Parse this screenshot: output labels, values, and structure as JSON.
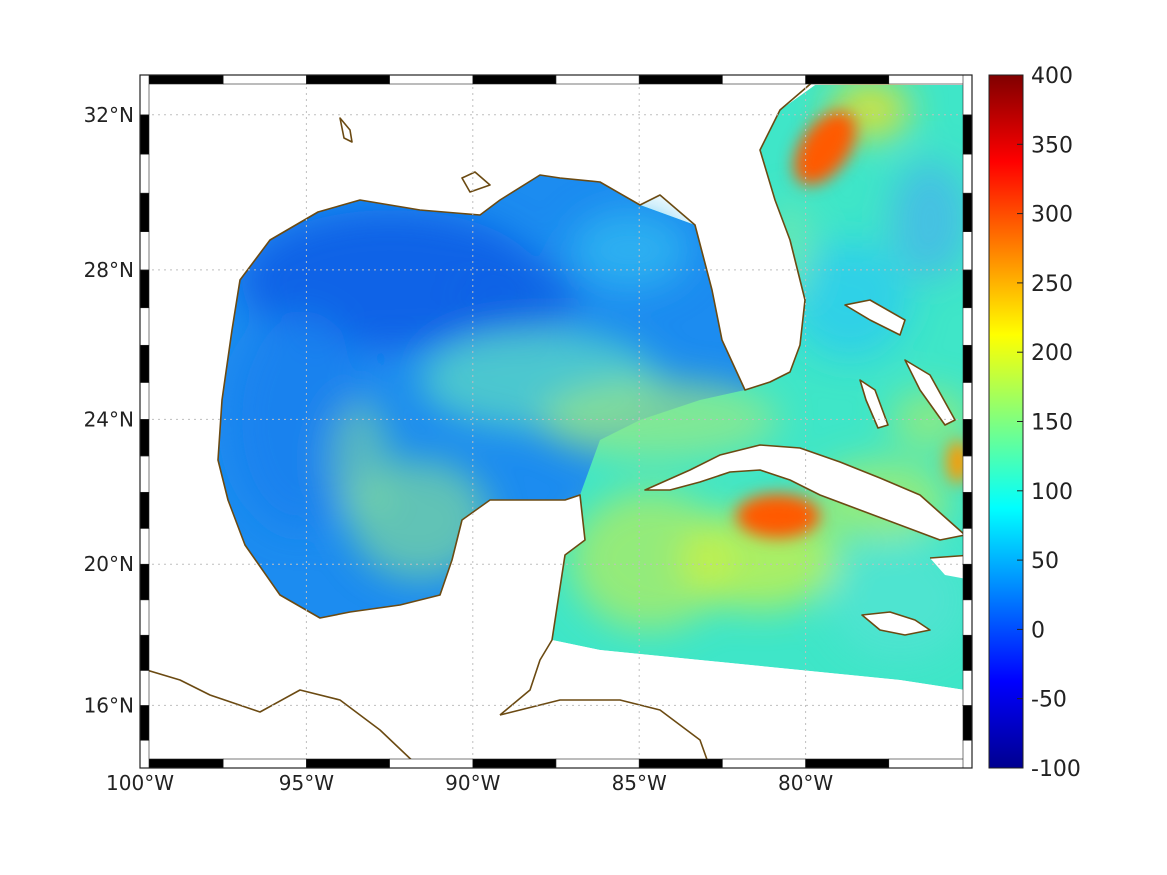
{
  "map": {
    "projection": "mercator",
    "extent": {
      "lon": [
        -100,
        -75
      ],
      "lat": [
        14.2,
        33
      ]
    },
    "x_ticks": [
      {
        "value": -100,
        "label": "100°W"
      },
      {
        "value": -95,
        "label": "95°W"
      },
      {
        "value": -90,
        "label": "90°W"
      },
      {
        "value": -85,
        "label": "85°W"
      },
      {
        "value": -80,
        "label": "80°W"
      }
    ],
    "y_ticks": [
      {
        "value": 16,
        "label": "16°N"
      },
      {
        "value": 20,
        "label": "20°N"
      },
      {
        "value": 24,
        "label": "24°N"
      },
      {
        "value": 28,
        "label": "28°N"
      },
      {
        "value": 32,
        "label": "32°N"
      }
    ],
    "grid": true,
    "coastline_color": "#6b4a12",
    "field_colormap": "jet",
    "hotspots": [
      {
        "lon": -80.6,
        "lat": 21.2,
        "value": 310
      },
      {
        "lon": -79.6,
        "lat": 30.8,
        "value": 290
      },
      {
        "lon": -75.3,
        "lat": 22.6,
        "value": 250
      }
    ]
  },
  "colorbar": {
    "range": [
      -100,
      400
    ],
    "placement": "right",
    "ticks": [
      {
        "value": 400,
        "label": "400"
      },
      {
        "value": 350,
        "label": "350"
      },
      {
        "value": 300,
        "label": "300"
      },
      {
        "value": 250,
        "label": "250"
      },
      {
        "value": 200,
        "label": "200"
      },
      {
        "value": 150,
        "label": "150"
      },
      {
        "value": 100,
        "label": "100"
      },
      {
        "value": 50,
        "label": "50"
      },
      {
        "value": 0,
        "label": "0"
      },
      {
        "value": -50,
        "label": "-50"
      },
      {
        "value": -100,
        "label": "-100"
      }
    ]
  }
}
